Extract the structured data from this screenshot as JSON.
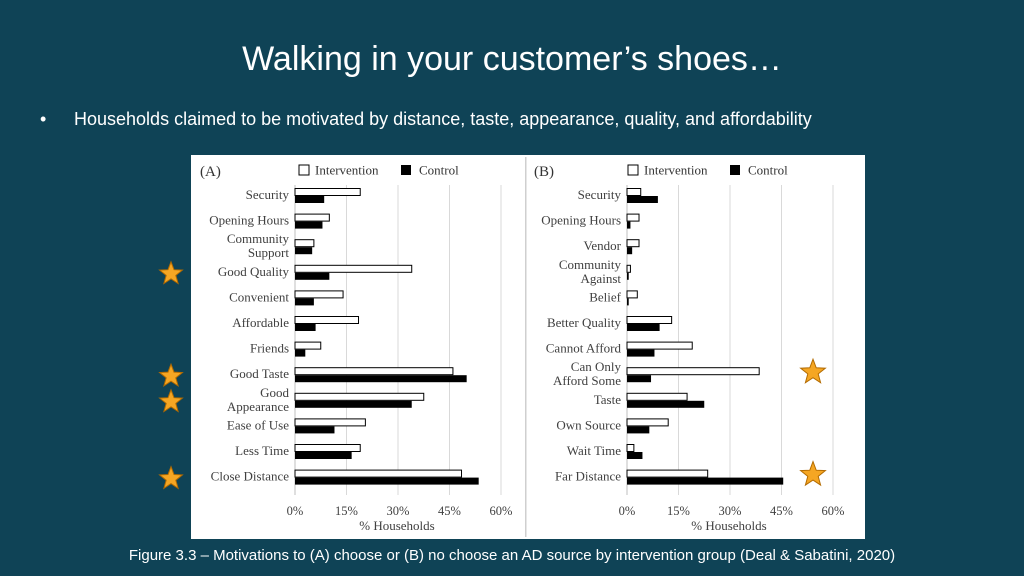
{
  "slide": {
    "title": "Walking in your customer’s shoes…",
    "bullet": "•",
    "bullet_text": "Households claimed to be motivated by distance, taste, appearance, quality, and affordability",
    "caption": "Figure 3.3 – Motivations to (A) choose or (B) no choose an AD source by intervention group (Deal & Sabatini, 2020)"
  },
  "colors": {
    "background": "#0f4356",
    "star_fill": "#f5a623",
    "star_stroke": "#b36b00",
    "control_bar": "#000000",
    "intervention_bar": "#ffffff"
  },
  "highlight": {
    "icon": "star-icon",
    "panel_a": [
      "Good Quality",
      "Good Taste",
      "Good Appearance",
      "Close Distance"
    ],
    "panel_b": [
      "Can Only Afford Some",
      "Far Distance"
    ]
  },
  "chart_data": [
    {
      "type": "bar",
      "orientation": "horizontal",
      "panel_label": "(A)",
      "categories": [
        "Security",
        "Opening Hours",
        "Community Support",
        "Good Quality",
        "Convenient",
        "Affordable",
        "Friends",
        "Good Taste",
        "Good Appearance",
        "Ease of Use",
        "Less Time",
        "Close Distance"
      ],
      "category_lines": [
        [
          "Security"
        ],
        [
          "Opening Hours"
        ],
        [
          "Community",
          "Support"
        ],
        [
          "Good Quality"
        ],
        [
          "Convenient"
        ],
        [
          "Affordable"
        ],
        [
          "Friends"
        ],
        [
          "Good Taste"
        ],
        [
          "Good",
          "Appearance"
        ],
        [
          "Ease of Use"
        ],
        [
          "Less Time"
        ],
        [
          "Close Distance"
        ]
      ],
      "series": [
        {
          "name": "Intervention",
          "values": [
            19,
            10,
            5.5,
            34,
            14,
            18.5,
            7.5,
            46,
            37.5,
            20.5,
            19,
            48.5
          ]
        },
        {
          "name": "Control",
          "values": [
            8.5,
            8,
            5,
            10,
            5.5,
            6,
            3,
            50,
            34,
            11.5,
            16.5,
            53.5
          ]
        }
      ],
      "xlim": [
        0,
        60
      ],
      "xticks": [
        "0%",
        "15%",
        "30%",
        "45%",
        "60%"
      ],
      "xlabel": "% Households",
      "legend_position": "top",
      "grid": true
    },
    {
      "type": "bar",
      "orientation": "horizontal",
      "panel_label": "(B)",
      "categories": [
        "Security",
        "Opening Hours",
        "Vendor",
        "Community Against",
        "Belief",
        "Better Quality",
        "Cannot Afford",
        "Can Only Afford Some",
        "Taste",
        "Own Source",
        "Wait Time",
        "Far Distance"
      ],
      "category_lines": [
        [
          "Security"
        ],
        [
          "Opening Hours"
        ],
        [
          "Vendor"
        ],
        [
          "Community",
          "Against"
        ],
        [
          "Belief"
        ],
        [
          "Better Quality"
        ],
        [
          "Cannot Afford"
        ],
        [
          "Can Only",
          "Afford Some"
        ],
        [
          "Taste"
        ],
        [
          "Own Source"
        ],
        [
          "Wait Time"
        ],
        [
          "Far Distance"
        ]
      ],
      "series": [
        {
          "name": "Intervention",
          "values": [
            4,
            3.5,
            3.5,
            1,
            3,
            13,
            19,
            38.5,
            17.5,
            12,
            2,
            23.5
          ]
        },
        {
          "name": "Control",
          "values": [
            9,
            1,
            1.5,
            0.5,
            0.5,
            9.5,
            8,
            7,
            22.5,
            6.5,
            4.5,
            45.5
          ]
        }
      ],
      "xlim": [
        0,
        60
      ],
      "xticks": [
        "0%",
        "15%",
        "30%",
        "45%",
        "60%"
      ],
      "xlabel": "% Households",
      "legend_position": "top",
      "grid": true
    }
  ]
}
